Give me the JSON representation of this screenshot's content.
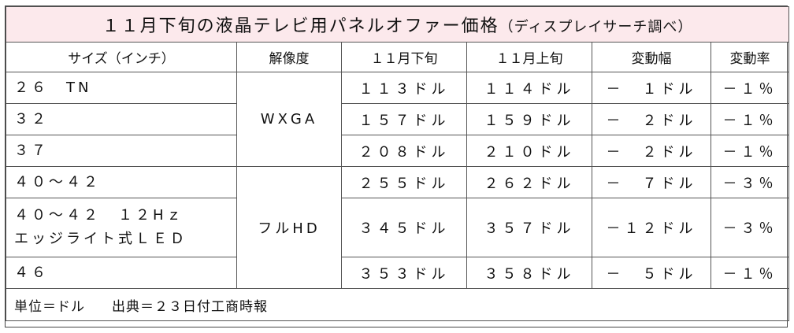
{
  "title": {
    "main": "１１月下旬の液晶テレビ用パネルオファー価格",
    "source_note": "（ディスプレイサーチ調べ）"
  },
  "headers": [
    "サイズ（インチ）",
    "解像度",
    "１１月下旬",
    "１１月上旬",
    "変動幅",
    "変動率"
  ],
  "resolution_groups": [
    "WXGA",
    "フルHD"
  ],
  "rows": [
    {
      "size": "２６　TN",
      "late_nov": "１１３ドル",
      "early_nov": "１１４ドル",
      "change": "－　１ドル",
      "rate": "－１％"
    },
    {
      "size": "３２",
      "late_nov": "１５７ドル",
      "early_nov": "１５９ドル",
      "change": "－　２ドル",
      "rate": "－１％"
    },
    {
      "size": "３７",
      "late_nov": "２０８ドル",
      "early_nov": "２１０ドル",
      "change": "－　２ドル",
      "rate": "－１％"
    },
    {
      "size": "４０～４２",
      "late_nov": "２５５ドル",
      "early_nov": "２６２ドル",
      "change": "－　７ドル",
      "rate": "－３％"
    },
    {
      "size_line1": "４０～４２　１２Hｚ",
      "size_line2": "エッジライト式ＬＥＤ",
      "late_nov": "３４５ドル",
      "early_nov": "３５７ドル",
      "change": "－１２ドル",
      "rate": "－３％"
    },
    {
      "size": "４６",
      "late_nov": "３５３ドル",
      "early_nov": "３５８ドル",
      "change": "－　５ドル",
      "rate": "－１％"
    }
  ],
  "footer": {
    "unit": "単位＝ドル",
    "source": "出典＝２３日付工商時報"
  }
}
